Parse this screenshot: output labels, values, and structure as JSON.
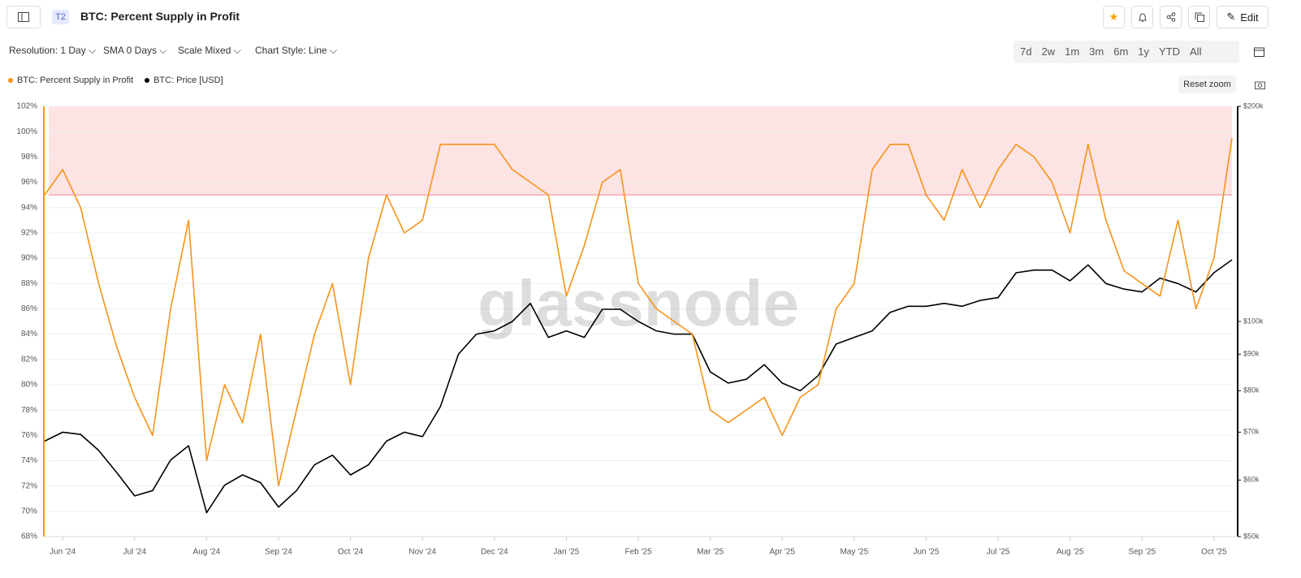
{
  "header": {
    "badge": "T2",
    "title": "BTC: Percent Supply in Profit",
    "edit": "Edit"
  },
  "toolbar": {
    "controls": [
      "Resolution: 1 Day",
      "SMA 0 Days",
      "Scale Mixed",
      "Chart Style: Line"
    ],
    "ranges": [
      "7d",
      "2w",
      "1m",
      "3m",
      "6m",
      "1y",
      "YTD",
      "All"
    ],
    "reset": "Reset zoom"
  },
  "chart_data": {
    "type": "line",
    "watermark": "glassnode",
    "categories": [
      null,
      "Jun '24",
      null,
      null,
      null,
      "Jul '24",
      null,
      null,
      null,
      "Aug '24",
      null,
      null,
      null,
      "Sep '24",
      null,
      null,
      null,
      "Oct '24",
      null,
      null,
      null,
      "Nov '24",
      null,
      null,
      null,
      "Dec '24",
      null,
      null,
      null,
      "Jan '25",
      null,
      null,
      null,
      "Feb '25",
      null,
      null,
      null,
      "Mar '25",
      null,
      null,
      null,
      "Apr '25",
      null,
      null,
      null,
      "May '25",
      null,
      null,
      null,
      "Jun '25",
      null,
      null,
      null,
      "Jul '25",
      null,
      null,
      null,
      "Aug '25",
      null,
      null,
      null,
      "Sep '25",
      null,
      null,
      null,
      "Oct '25",
      null
    ],
    "series": [
      {
        "name": "BTC: Percent Supply in Profit",
        "color": "#f7931a",
        "values": [
          95,
          97,
          94,
          88,
          83,
          79,
          76,
          86,
          93,
          74,
          80,
          77,
          84,
          72,
          78,
          84,
          88,
          80,
          90,
          95,
          92,
          93,
          99,
          99,
          99,
          99,
          97,
          96,
          95,
          87,
          91,
          96,
          97,
          88,
          86,
          85,
          84,
          78,
          77,
          78,
          79,
          76,
          79,
          80,
          86,
          88,
          97,
          99,
          99,
          95,
          93,
          97,
          94,
          97,
          99,
          98,
          96,
          92,
          99,
          93,
          89,
          88,
          87,
          93,
          86,
          90,
          99.5
        ]
      },
      {
        "name": "BTC: Price [USD]",
        "color": "#000000",
        "axis": "y2",
        "values": [
          68000,
          70000,
          69500,
          66000,
          61500,
          57000,
          58000,
          64000,
          67000,
          54000,
          59000,
          61000,
          59500,
          55000,
          58000,
          63000,
          65000,
          61000,
          63000,
          68000,
          70000,
          69000,
          76000,
          90000,
          96000,
          97000,
          100000,
          106000,
          95000,
          97000,
          95000,
          104000,
          104000,
          100000,
          97000,
          96000,
          96000,
          85000,
          82000,
          83000,
          87000,
          82000,
          80000,
          84000,
          93000,
          95000,
          97000,
          103000,
          105000,
          105000,
          106000,
          105000,
          107000,
          108000,
          117000,
          118000,
          118000,
          114000,
          120000,
          113000,
          111000,
          110000,
          115000,
          113000,
          110000,
          117000,
          122000
        ]
      }
    ],
    "ylim": [
      68,
      102
    ],
    "yticks": [
      {
        "value": 68,
        "label": "68%"
      },
      {
        "value": 70,
        "label": "70%"
      },
      {
        "value": 72,
        "label": "72%"
      },
      {
        "value": 74,
        "label": "74%"
      },
      {
        "value": 76,
        "label": "76%"
      },
      {
        "value": 78,
        "label": "78%"
      },
      {
        "value": 80,
        "label": "80%"
      },
      {
        "value": 82,
        "label": "82%"
      },
      {
        "value": 84,
        "label": "84%"
      },
      {
        "value": 86,
        "label": "86%"
      },
      {
        "value": 88,
        "label": "88%"
      },
      {
        "value": 90,
        "label": "90%"
      },
      {
        "value": 92,
        "label": "92%"
      },
      {
        "value": 94,
        "label": "94%"
      },
      {
        "value": 96,
        "label": "96%"
      },
      {
        "value": 98,
        "label": "98%"
      },
      {
        "value": 100,
        "label": "100%"
      },
      {
        "value": 102,
        "label": "102%"
      }
    ],
    "y2lim": [
      50000,
      200000
    ],
    "y2scale": "log",
    "y2ticks": [
      {
        "value": 50000,
        "label": "$50k"
      },
      {
        "value": 60000,
        "label": "$60k"
      },
      {
        "value": 70000,
        "label": "$70k"
      },
      {
        "value": 80000,
        "label": "$80k"
      },
      {
        "value": 90000,
        "label": "$90k"
      },
      {
        "value": 100000,
        "label": "$100k"
      },
      {
        "value": 200000,
        "label": "$200k"
      }
    ],
    "highlight_band": [
      95,
      102
    ],
    "band_color": "#fde3e3",
    "band_line_color": "#ec8a8a",
    "grid": true
  }
}
